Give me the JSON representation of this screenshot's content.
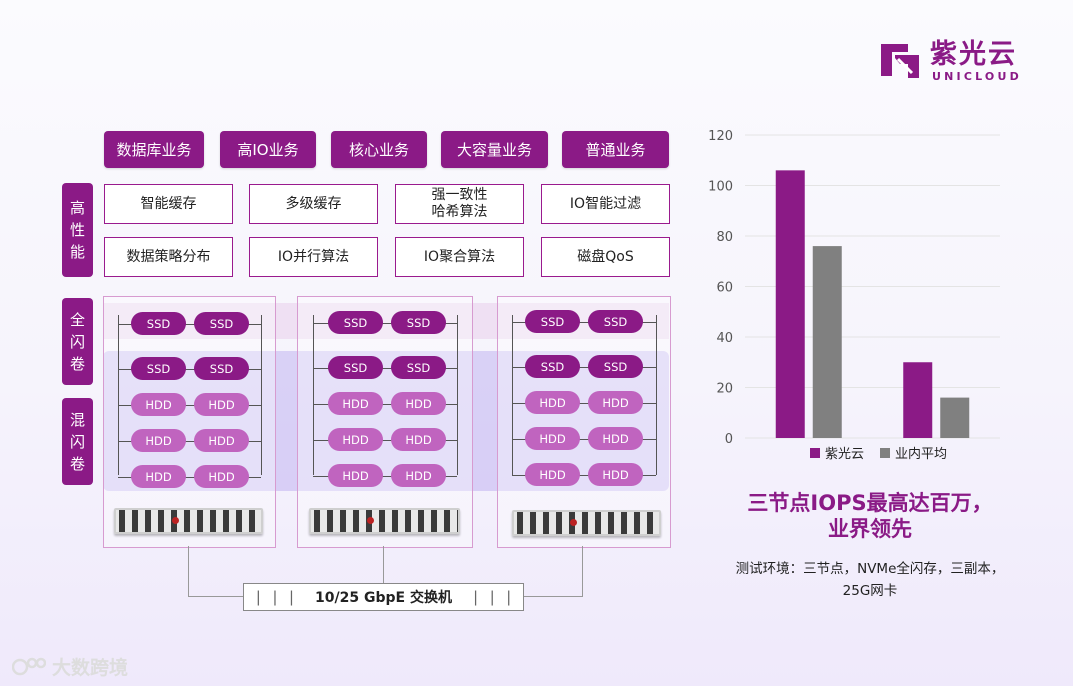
{
  "logo": {
    "name_cn": "紫光云",
    "name_en": "UNICLOUD",
    "brand_color": "#8b1a86"
  },
  "business": [
    "数据库业务",
    "高IO业务",
    "核心业务",
    "大容量业务",
    "普通业务"
  ],
  "side_labels": {
    "performance": "高\n性\n能",
    "all_flash": "全\n闪\n卷",
    "hybrid_flash": "混\n闪\n卷"
  },
  "features": [
    "智能缓存",
    "多级缓存",
    "强一致性\n哈希算法",
    "IO智能过滤",
    "数据策略分布",
    "IO并行算法",
    "IO聚合算法",
    "磁盘QoS"
  ],
  "disk_labels": {
    "ssd": "SSD",
    "hdd": "HDD"
  },
  "switch_label": "10/25 GbpE 交换机",
  "chart_data": {
    "type": "bar",
    "categories": [
      "",
      ""
    ],
    "series": [
      {
        "name": "紫光云",
        "values": [
          106,
          30
        ],
        "color": "#8b1a86"
      },
      {
        "name": "业内平均",
        "values": [
          76,
          16
        ],
        "color": "#808080"
      }
    ],
    "ylim": [
      0,
      120
    ],
    "yticks": [
      0,
      20,
      40,
      60,
      80,
      100,
      120
    ],
    "grid": true,
    "legend": "bottom"
  },
  "headline": [
    "三节点IOPS最高达百万，",
    "业界领先"
  ],
  "env_text": [
    "测试环境：三节点，NVMe全闪存，三副本，",
    "25G网卡"
  ],
  "watermark": "大数跨境"
}
